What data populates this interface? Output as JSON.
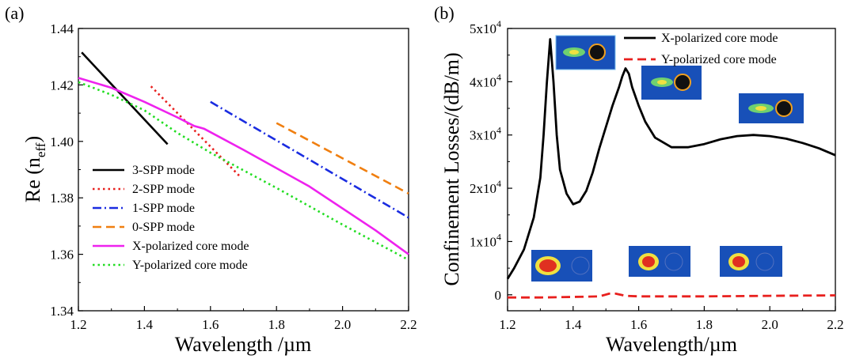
{
  "chart_data": [
    {
      "type": "line",
      "panel_label": "(a)",
      "xlabel": "Wavelength /µm",
      "ylabel_main": "Re (n",
      "ylabel_sub": "eff",
      "ylabel_close": ")",
      "xlim": [
        1.2,
        2.2
      ],
      "ylim": [
        1.34,
        1.44
      ],
      "xticks": [
        "1.2",
        "1.4",
        "1.6",
        "1.8",
        "2.0",
        "2.2"
      ],
      "yticks": [
        "1.34",
        "1.36",
        "1.38",
        "1.40",
        "1.42",
        "1.44"
      ],
      "grid": false,
      "legend_position": "bottom-left",
      "series": [
        {
          "name": "3-SPP mode",
          "color": "#000000",
          "dash": "solid",
          "x": [
            1.21,
            1.47
          ],
          "y": [
            1.4315,
            1.399
          ]
        },
        {
          "name": "2-SPP mode",
          "color": "#e8201e",
          "dash": "dot",
          "x": [
            1.42,
            1.69
          ],
          "y": [
            1.4195,
            1.3875
          ]
        },
        {
          "name": "1-SPP mode",
          "color": "#1a2ce0",
          "dash": "dashdot",
          "x": [
            1.6,
            2.2
          ],
          "y": [
            1.414,
            1.373
          ]
        },
        {
          "name": "0-SPP mode",
          "color": "#f07f10",
          "dash": "dash",
          "x": [
            1.8,
            2.2
          ],
          "y": [
            1.4065,
            1.3815
          ]
        },
        {
          "name": "X-polarized core mode",
          "color": "#ee22ee",
          "dash": "solid",
          "x": [
            1.2,
            1.3,
            1.4,
            1.5,
            1.55,
            1.58,
            1.7,
            1.9,
            2.1,
            2.2
          ],
          "y": [
            1.4225,
            1.419,
            1.414,
            1.4085,
            1.4055,
            1.4045,
            1.397,
            1.384,
            1.3685,
            1.36
          ]
        },
        {
          "name": "Y-polarized core mode",
          "color": "#22dd22",
          "dash": "dot",
          "x": [
            1.2,
            1.3,
            1.4,
            1.5,
            1.6,
            1.8,
            2.0,
            2.2
          ],
          "y": [
            1.421,
            1.4165,
            1.411,
            1.403,
            1.396,
            1.3835,
            1.3705,
            1.358
          ]
        }
      ]
    },
    {
      "type": "line",
      "panel_label": "(b)",
      "xlabel": "Wavelength/µm",
      "ylabel": "Confinement Losses/(dB/m)",
      "xlim": [
        1.2,
        2.2
      ],
      "ylim": [
        -3000,
        50000
      ],
      "xticks": [
        "1.2",
        "1.4",
        "1.6",
        "1.8",
        "2.0",
        "2.2"
      ],
      "yticks": [
        {
          "value": 0,
          "base": "0",
          "exp": ""
        },
        {
          "value": 10000,
          "base": "1x10",
          "exp": "4"
        },
        {
          "value": 20000,
          "base": "2x10",
          "exp": "4"
        },
        {
          "value": 30000,
          "base": "3x10",
          "exp": "4"
        },
        {
          "value": 40000,
          "base": "4x10",
          "exp": "4"
        },
        {
          "value": 50000,
          "base": "5x10",
          "exp": "4"
        }
      ],
      "grid": false,
      "legend_position": "top-right",
      "series": [
        {
          "name": "X-polarized core mode",
          "color": "#000000",
          "dash": "solid",
          "x": [
            1.2,
            1.22,
            1.25,
            1.28,
            1.3,
            1.31,
            1.32,
            1.33,
            1.34,
            1.35,
            1.36,
            1.38,
            1.4,
            1.42,
            1.44,
            1.46,
            1.48,
            1.5,
            1.52,
            1.54,
            1.55,
            1.56,
            1.57,
            1.58,
            1.6,
            1.62,
            1.65,
            1.7,
            1.75,
            1.8,
            1.85,
            1.9,
            1.95,
            2.0,
            2.05,
            2.1,
            2.15,
            2.2
          ],
          "y": [
            3000,
            5000,
            8500,
            14500,
            22000,
            30000,
            40000,
            48000,
            40000,
            30000,
            23500,
            19000,
            17000,
            17500,
            19500,
            23000,
            27500,
            31500,
            35500,
            39000,
            41000,
            42500,
            41500,
            39000,
            35500,
            32500,
            29500,
            27700,
            27700,
            28300,
            29200,
            29800,
            30000,
            29800,
            29300,
            28500,
            27500,
            26200
          ]
        },
        {
          "name": "Y-polarized core mode",
          "color": "#e8201e",
          "dash": "dash",
          "x": [
            1.2,
            1.3,
            1.4,
            1.48,
            1.51,
            1.53,
            1.56,
            1.6,
            1.8,
            2.0,
            2.2
          ],
          "y": [
            -500,
            -500,
            -400,
            -300,
            200,
            200,
            -200,
            -300,
            -300,
            -200,
            -100
          ]
        }
      ]
    }
  ]
}
